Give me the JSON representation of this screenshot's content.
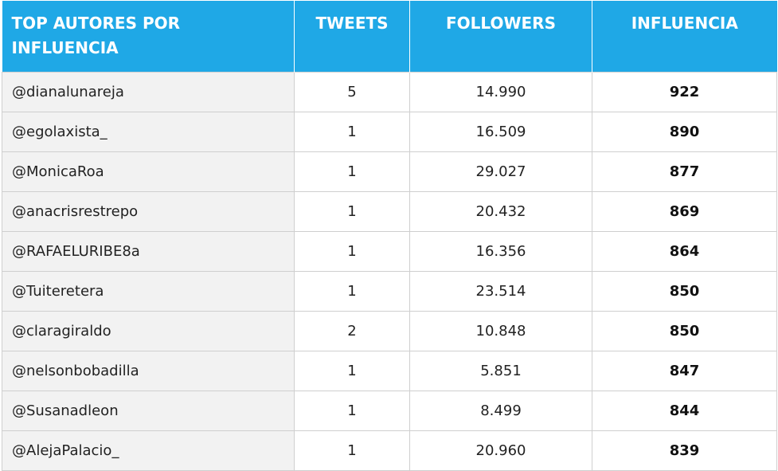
{
  "table": {
    "headers": [
      "TOP AUTORES POR INFLUENCIA",
      "TWEETS",
      "FOLLOWERS",
      "INFLUENCIA"
    ],
    "rows": [
      {
        "author": "@dianalunareja",
        "tweets": "5",
        "followers": "14.990",
        "influence": "922"
      },
      {
        "author": "@egolaxista_",
        "tweets": "1",
        "followers": "16.509",
        "influence": "890"
      },
      {
        "author": "@MonicaRoa",
        "tweets": "1",
        "followers": "29.027",
        "influence": "877"
      },
      {
        "author": "@anacrisrestrepo",
        "tweets": "1",
        "followers": "20.432",
        "influence": "869"
      },
      {
        "author": "@RAFAELURIBE8a",
        "tweets": "1",
        "followers": "16.356",
        "influence": "864"
      },
      {
        "author": "@Tuiteretera",
        "tweets": "1",
        "followers": "23.514",
        "influence": "850"
      },
      {
        "author": "@claragiraldo",
        "tweets": "2",
        "followers": "10.848",
        "influence": "850"
      },
      {
        "author": "@nelsonbobadilla",
        "tweets": "1",
        "followers": "5.851",
        "influence": "847"
      },
      {
        "author": "@Susanadleon",
        "tweets": "1",
        "followers": "8.499",
        "influence": "844"
      },
      {
        "author": "@AlejaPalacio_",
        "tweets": "1",
        "followers": "20.960",
        "influence": "839"
      }
    ]
  },
  "colors": {
    "header_bg": "#1fa8e6",
    "header_text": "#ffffff",
    "author_cell_bg": "#f2f2f2",
    "grid": "#cfcfcf"
  }
}
